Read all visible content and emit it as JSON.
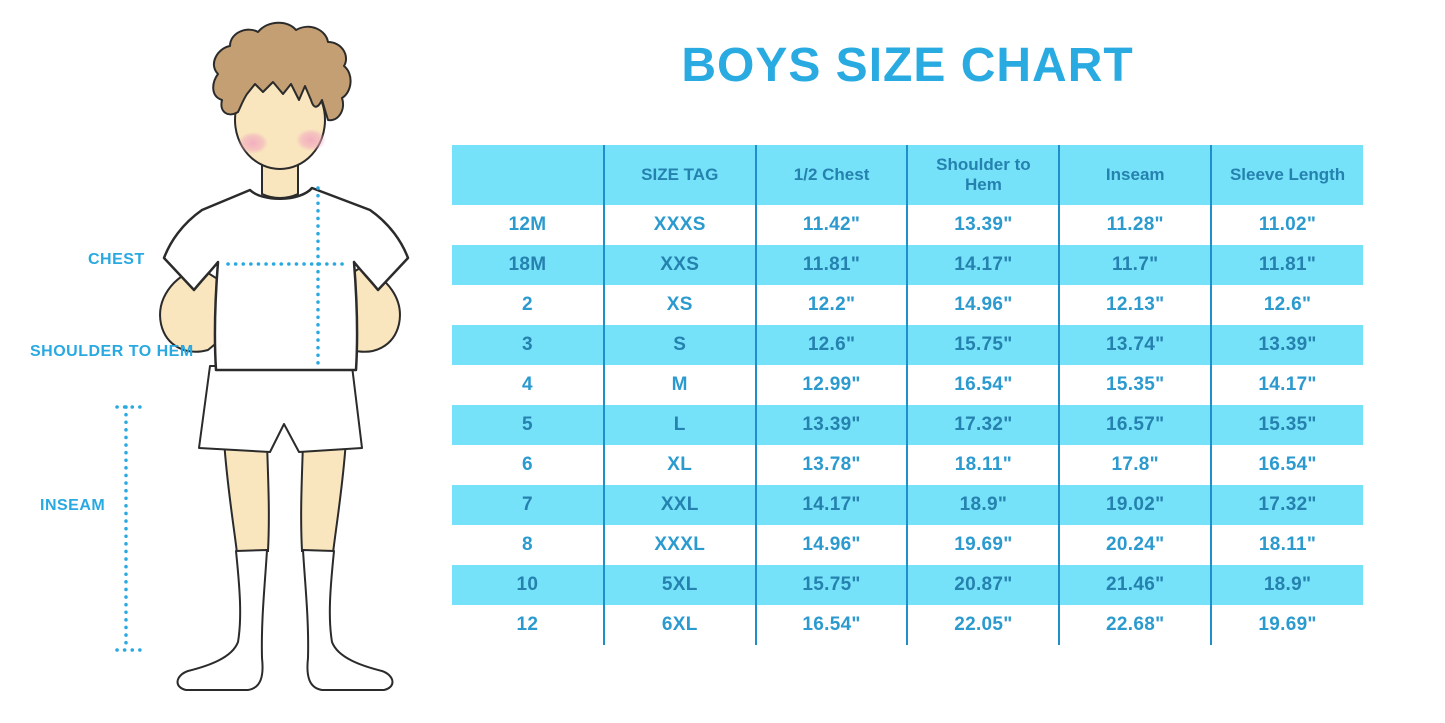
{
  "title": "BOYS SIZE CHART",
  "figure": {
    "labels": {
      "chest": "CHEST",
      "shoulder_to_hem": "SHOULDER TO HEM",
      "inseam": "INSEAM"
    }
  },
  "table": {
    "headers": [
      "",
      "SIZE TAG",
      "1/2 Chest",
      "Shoulder to Hem",
      "Inseam",
      "Sleeve Length"
    ],
    "rows": [
      [
        "12M",
        "XXXS",
        "11.42\"",
        "13.39\"",
        "11.28\"",
        "11.02\""
      ],
      [
        "18M",
        "XXS",
        "11.81\"",
        "14.17\"",
        "11.7\"",
        "11.81\""
      ],
      [
        "2",
        "XS",
        "12.2\"",
        "14.96\"",
        "12.13\"",
        "12.6\""
      ],
      [
        "3",
        "S",
        "12.6\"",
        "15.75\"",
        "13.74\"",
        "13.39\""
      ],
      [
        "4",
        "M",
        "12.99\"",
        "16.54\"",
        "15.35\"",
        "14.17\""
      ],
      [
        "5",
        "L",
        "13.39\"",
        "17.32\"",
        "16.57\"",
        "15.35\""
      ],
      [
        "6",
        "XL",
        "13.78\"",
        "18.11\"",
        "17.8\"",
        "16.54\""
      ],
      [
        "7",
        "XXL",
        "14.17\"",
        "18.9\"",
        "19.02\"",
        "17.32\""
      ],
      [
        "8",
        "XXXL",
        "14.96\"",
        "19.69\"",
        "20.24\"",
        "18.11\""
      ],
      [
        "10",
        "5XL",
        "15.75\"",
        "20.87\"",
        "21.46\"",
        "18.9\""
      ],
      [
        "12",
        "6XL",
        "16.54\"",
        "22.05\"",
        "22.68\"",
        "19.69\""
      ]
    ]
  },
  "colors": {
    "title-text": "#29ABE2",
    "accent-blue": "#29A9E1",
    "row-cyan": "#75E2FA",
    "grid-line": "#1E8FC8",
    "cell-bright": "#2B9ACF",
    "cell-dark": "#2581AE",
    "skin": "#F9E5BE",
    "hair": "#C39F73",
    "blush": "#F2A9BF"
  }
}
